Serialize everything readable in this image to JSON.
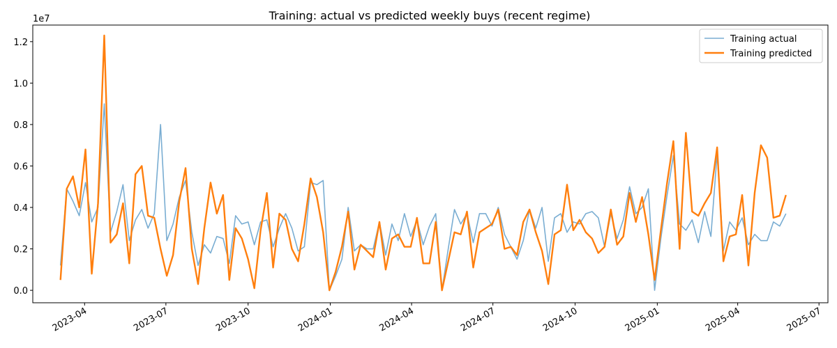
{
  "chart_data": {
    "type": "line",
    "title": "Training: actual vs predicted weekly buys (recent regime)",
    "xlabel": "",
    "ylabel": "",
    "y_offset_label": "1e7",
    "ylim": [
      -0.06,
      1.28
    ],
    "xlim": [
      "2023-02-02",
      "2025-07-11"
    ],
    "x_ticks": [
      "2023-04-01",
      "2023-07-01",
      "2023-10-01",
      "2024-01-01",
      "2024-04-01",
      "2024-07-01",
      "2024-10-01",
      "2025-01-01",
      "2025-04-01",
      "2025-07-01"
    ],
    "x_tick_labels": [
      "2023-04",
      "2023-07",
      "2023-10",
      "2024-01",
      "2024-04",
      "2024-07",
      "2024-10",
      "2025-01",
      "2025-04",
      "2025-07"
    ],
    "y_ticks": [
      0,
      0.2,
      0.4,
      0.6,
      0.8,
      1.0,
      1.2
    ],
    "y_tick_labels": [
      "0.0",
      "0.2",
      "0.4",
      "0.6",
      "0.8",
      "1.0",
      "1.2"
    ],
    "legend": {
      "position": "upper-right"
    },
    "grid": false,
    "x_start": "2023-03-05",
    "x_step_days": 7,
    "series": [
      {
        "name": "Training actual",
        "color": "#1f77b4",
        "values": [
          0.12,
          0.49,
          0.43,
          0.36,
          0.52,
          0.33,
          0.4,
          0.9,
          0.28,
          0.38,
          0.51,
          0.24,
          0.34,
          0.39,
          0.3,
          0.37,
          0.8,
          0.24,
          0.32,
          0.45,
          0.53,
          0.28,
          0.12,
          0.22,
          0.18,
          0.26,
          0.25,
          0.13,
          0.36,
          0.32,
          0.33,
          0.22,
          0.33,
          0.34,
          0.21,
          0.3,
          0.37,
          0.3,
          0.19,
          0.21,
          0.52,
          0.51,
          0.53,
          0.0,
          0.07,
          0.15,
          0.4,
          0.19,
          0.22,
          0.2,
          0.2,
          0.33,
          0.17,
          0.32,
          0.24,
          0.37,
          0.26,
          0.34,
          0.22,
          0.31,
          0.37,
          0.0,
          0.2,
          0.39,
          0.32,
          0.37,
          0.23,
          0.37,
          0.37,
          0.31,
          0.4,
          0.27,
          0.21,
          0.15,
          0.24,
          0.39,
          0.3,
          0.4,
          0.14,
          0.35,
          0.37,
          0.28,
          0.33,
          0.32,
          0.37,
          0.38,
          0.35,
          0.21,
          0.37,
          0.25,
          0.34,
          0.5,
          0.37,
          0.4,
          0.49,
          0.0,
          0.25,
          0.46,
          0.65,
          0.32,
          0.29,
          0.34,
          0.23,
          0.38,
          0.26,
          0.66,
          0.19,
          0.33,
          0.29,
          0.35,
          0.22,
          0.27,
          0.24,
          0.24,
          0.33,
          0.31,
          0.37
        ]
      },
      {
        "name": "Training predicted",
        "color": "#ff7f0e",
        "values": [
          0.05,
          0.49,
          0.55,
          0.4,
          0.68,
          0.08,
          0.42,
          1.23,
          0.23,
          0.27,
          0.42,
          0.13,
          0.56,
          0.6,
          0.36,
          0.35,
          0.2,
          0.07,
          0.17,
          0.43,
          0.59,
          0.2,
          0.03,
          0.3,
          0.52,
          0.37,
          0.46,
          0.05,
          0.3,
          0.25,
          0.15,
          0.01,
          0.29,
          0.47,
          0.11,
          0.37,
          0.34,
          0.2,
          0.14,
          0.32,
          0.54,
          0.45,
          0.28,
          0.0,
          0.09,
          0.21,
          0.38,
          0.1,
          0.22,
          0.19,
          0.16,
          0.33,
          0.1,
          0.25,
          0.27,
          0.21,
          0.21,
          0.35,
          0.13,
          0.13,
          0.33,
          0.0,
          0.14,
          0.28,
          0.27,
          0.38,
          0.11,
          0.28,
          0.3,
          0.32,
          0.39,
          0.2,
          0.21,
          0.17,
          0.33,
          0.39,
          0.28,
          0.19,
          0.03,
          0.27,
          0.29,
          0.51,
          0.29,
          0.34,
          0.28,
          0.25,
          0.18,
          0.21,
          0.39,
          0.22,
          0.26,
          0.47,
          0.33,
          0.45,
          0.27,
          0.05,
          0.29,
          0.52,
          0.72,
          0.2,
          0.76,
          0.38,
          0.36,
          0.42,
          0.47,
          0.69,
          0.14,
          0.26,
          0.27,
          0.46,
          0.12,
          0.47,
          0.7,
          0.64,
          0.35,
          0.36,
          0.46
        ]
      }
    ]
  }
}
